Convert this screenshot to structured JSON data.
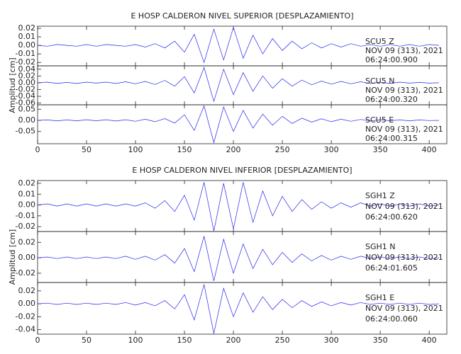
{
  "chart_data": [
    {
      "type": "line",
      "title": "E HOSP CALDERON NIVEL SUPERIOR [DESPLAZAMIENTO]",
      "annotation": {
        "station": "SCU5   Z",
        "date": "NOV 09 (313), 2021",
        "time": "06:24:00.900"
      },
      "x": [
        0,
        10,
        20,
        30,
        40,
        50,
        60,
        70,
        80,
        90,
        100,
        110,
        120,
        130,
        140,
        150,
        160,
        170,
        180,
        190,
        200,
        210,
        220,
        230,
        240,
        250,
        260,
        270,
        280,
        290,
        300,
        310,
        320,
        330,
        340,
        350,
        360,
        370,
        380,
        390,
        400,
        410
      ],
      "values": [
        0,
        -0.001,
        0.001,
        0,
        -0.001,
        0.001,
        -0.001,
        0.001,
        0,
        -0.001,
        0.001,
        -0.002,
        0.002,
        -0.003,
        0.005,
        -0.008,
        0.013,
        -0.02,
        0.019,
        -0.017,
        0.021,
        -0.015,
        0.012,
        -0.01,
        0.008,
        -0.006,
        0.005,
        -0.004,
        0.003,
        -0.003,
        0.002,
        -0.002,
        0.002,
        -0.001,
        0.001,
        -0.001,
        0.001,
        -0.001,
        0.001,
        -0.001,
        0.001,
        0
      ],
      "color": "#2424f0",
      "xlim": [
        0,
        418
      ],
      "ylim": [
        -0.024,
        0.0225
      ],
      "yticks": [
        0.02,
        0.01,
        {
          "value": 0,
          "label": "0.00"
        },
        -0.01,
        -0.02
      ]
    },
    {
      "type": "line",
      "ylabel": "Amplitud [cm]",
      "annotation": {
        "station": "SCU5   N",
        "date": "NOV 09 (313), 2021",
        "time": "06:24:00.320"
      },
      "x": [
        0,
        10,
        20,
        30,
        40,
        50,
        60,
        70,
        80,
        90,
        100,
        110,
        120,
        130,
        140,
        150,
        160,
        170,
        180,
        190,
        200,
        210,
        220,
        230,
        240,
        250,
        260,
        270,
        280,
        290,
        300,
        310,
        320,
        330,
        340,
        350,
        360,
        370,
        380,
        390,
        400,
        410
      ],
      "values": [
        0,
        0.002,
        -0.002,
        0.001,
        -0.002,
        0.002,
        -0.001,
        0.002,
        -0.002,
        0.003,
        -0.003,
        0.004,
        -0.005,
        0.007,
        -0.01,
        0.018,
        -0.03,
        0.045,
        -0.055,
        0.04,
        -0.035,
        0.03,
        -0.025,
        0.02,
        -0.016,
        0.012,
        -0.01,
        0.008,
        -0.006,
        0.005,
        -0.004,
        0.004,
        -0.003,
        0.003,
        -0.002,
        0.002,
        -0.002,
        0.002,
        -0.001,
        0.001,
        -0.001,
        0
      ],
      "color": "#2424f0",
      "xlim": [
        0,
        418
      ],
      "ylim": [
        -0.065,
        0.05
      ],
      "yticks": [
        0.04,
        0.02,
        {
          "value": 0,
          "label": "0.00"
        },
        -0.02,
        -0.04,
        -0.06
      ]
    },
    {
      "type": "line",
      "annotation": {
        "station": "SCU5   E",
        "date": "NOV 09 (313), 2021",
        "time": "06:24:00.315"
      },
      "x": [
        0,
        10,
        20,
        30,
        40,
        50,
        60,
        70,
        80,
        90,
        100,
        110,
        120,
        130,
        140,
        150,
        160,
        170,
        180,
        190,
        200,
        210,
        220,
        230,
        240,
        250,
        260,
        270,
        280,
        290,
        300,
        310,
        320,
        330,
        340,
        350,
        360,
        370,
        380,
        390,
        400,
        410
      ],
      "values": [
        0,
        0.002,
        -0.002,
        0.002,
        -0.002,
        0.003,
        -0.002,
        0.003,
        -0.003,
        0.003,
        -0.004,
        0.005,
        -0.006,
        0.008,
        -0.012,
        0.025,
        -0.045,
        0.065,
        -0.1,
        0.06,
        -0.05,
        0.045,
        -0.035,
        0.028,
        -0.022,
        0.018,
        -0.014,
        0.01,
        -0.008,
        0.007,
        -0.006,
        0.005,
        -0.004,
        0.004,
        -0.003,
        0.003,
        -0.002,
        0.002,
        -0.002,
        0.002,
        -0.001,
        0
      ],
      "color": "#2424f0",
      "xlim": [
        0,
        418
      ],
      "ylim": [
        -0.105,
        0.07
      ],
      "yticks": [
        0.05,
        {
          "value": 0,
          "label": "0.00"
        },
        -0.05
      ],
      "xticks": [
        0,
        50,
        100,
        150,
        200,
        250,
        300,
        350,
        400
      ]
    },
    {
      "type": "line",
      "title": "E HOSP CALDERON NIVEL INFERIOR [DESPLAZAMIENTO]",
      "annotation": {
        "station": "SGH1   Z",
        "date": "NOV 09 (313), 2021",
        "time": "06:24:00.620"
      },
      "x": [
        0,
        10,
        20,
        30,
        40,
        50,
        60,
        70,
        80,
        90,
        100,
        110,
        120,
        130,
        140,
        150,
        160,
        170,
        180,
        190,
        200,
        210,
        220,
        230,
        240,
        250,
        260,
        270,
        280,
        290,
        300,
        310,
        320,
        330,
        340,
        350,
        360,
        370,
        380,
        390,
        400,
        410
      ],
      "values": [
        0,
        0.001,
        -0.001,
        0.001,
        -0.001,
        0.001,
        -0.001,
        0.001,
        -0.001,
        0.001,
        -0.001,
        0.002,
        -0.003,
        0.004,
        -0.006,
        0.009,
        -0.014,
        0.021,
        -0.024,
        0.02,
        -0.022,
        0.021,
        -0.016,
        0.013,
        -0.01,
        0.008,
        -0.006,
        0.005,
        -0.004,
        0.003,
        -0.003,
        0.002,
        -0.002,
        0.002,
        -0.001,
        0.001,
        -0.001,
        0.001,
        -0.001,
        0.001,
        -0.001,
        0
      ],
      "color": "#2424f0",
      "xlim": [
        0,
        418
      ],
      "ylim": [
        -0.0245,
        0.0226
      ],
      "yticks": [
        0.02,
        0.01,
        {
          "value": 0,
          "label": "0.00"
        },
        -0.01,
        -0.02
      ]
    },
    {
      "type": "line",
      "ylabel": "Amplitud [cm]",
      "annotation": {
        "station": "SGH1   N",
        "date": "NOV 09 (313), 2021",
        "time": "06:24:01.605"
      },
      "x": [
        0,
        10,
        20,
        30,
        40,
        50,
        60,
        70,
        80,
        90,
        100,
        110,
        120,
        130,
        140,
        150,
        160,
        170,
        180,
        190,
        200,
        210,
        220,
        230,
        240,
        250,
        260,
        270,
        280,
        290,
        300,
        310,
        320,
        330,
        340,
        350,
        360,
        370,
        380,
        390,
        400,
        410
      ],
      "values": [
        0,
        0.001,
        -0.001,
        0.001,
        -0.001,
        0.001,
        -0.001,
        0.001,
        -0.001,
        0.002,
        -0.002,
        0.002,
        -0.003,
        0.004,
        -0.007,
        0.012,
        -0.018,
        0.028,
        -0.03,
        0.024,
        -0.02,
        0.018,
        -0.014,
        0.011,
        -0.009,
        0.007,
        -0.006,
        0.005,
        -0.004,
        0.003,
        -0.003,
        0.002,
        -0.002,
        0.002,
        -0.001,
        0.001,
        -0.001,
        0.001,
        -0.001,
        0.001,
        -0.001,
        0
      ],
      "color": "#2424f0",
      "xlim": [
        0,
        418
      ],
      "ylim": [
        -0.032,
        0.034
      ],
      "yticks": [
        0.02,
        {
          "value": 0,
          "label": "0.00"
        },
        -0.02
      ]
    },
    {
      "type": "line",
      "annotation": {
        "station": "SGH1   E",
        "date": "NOV 09 (313), 2021",
        "time": "06:24:00.060"
      },
      "x": [
        0,
        10,
        20,
        30,
        40,
        50,
        60,
        70,
        80,
        90,
        100,
        110,
        120,
        130,
        140,
        150,
        160,
        170,
        180,
        190,
        200,
        210,
        220,
        230,
        240,
        250,
        260,
        270,
        280,
        290,
        300,
        310,
        320,
        330,
        340,
        350,
        360,
        370,
        380,
        390,
        400,
        410
      ],
      "values": [
        0,
        0.001,
        -0.001,
        0.001,
        -0.001,
        0.001,
        -0.001,
        0.001,
        -0.001,
        0.002,
        -0.002,
        0.002,
        -0.003,
        0.005,
        -0.008,
        0.014,
        -0.025,
        0.03,
        -0.046,
        0.024,
        -0.02,
        0.017,
        -0.013,
        0.011,
        -0.009,
        0.007,
        -0.006,
        0.005,
        -0.004,
        0.003,
        -0.003,
        0.002,
        -0.002,
        0.002,
        -0.001,
        0.001,
        -0.001,
        0.001,
        -0.001,
        0.001,
        -0.001,
        0
      ],
      "color": "#2424f0",
      "xlim": [
        0,
        418
      ],
      "ylim": [
        -0.047,
        0.033
      ],
      "yticks": [
        0.02,
        {
          "value": 0,
          "label": "0.00"
        },
        -0.02,
        -0.04
      ],
      "xticks": [
        0,
        50,
        100,
        150,
        200,
        250,
        300,
        350,
        400
      ]
    }
  ]
}
